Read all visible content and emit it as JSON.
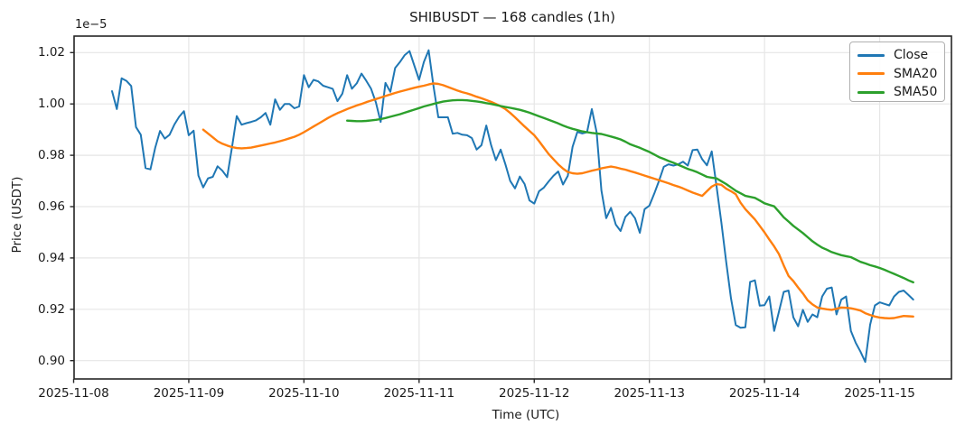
{
  "figure": {
    "title": "SHIBUSDT — 168 candles (1h)",
    "xlabel": "Time (UTC)",
    "ylabel": "Price (USDT)",
    "offset_text": "1e−5",
    "background_color": "#ffffff",
    "grid_color": "#e6e6e6",
    "spine_color": "#262626",
    "text_color": "#1a1a1a"
  },
  "legend": {
    "position": "upper right",
    "entries": [
      {
        "label": "Close",
        "color": "#1f77b4"
      },
      {
        "label": "SMA20",
        "color": "#ff7f0e"
      },
      {
        "label": "SMA50",
        "color": "#2ca02c"
      }
    ]
  },
  "chart_data": {
    "type": "line",
    "title": "SHIBUSDT — 168 candles (1h)",
    "xlabel": "Time (UTC)",
    "ylabel": "Price (USDT)",
    "y_scale_factor": "1e-5",
    "n_points": 168,
    "x_start": "2025-11-08 08:00",
    "x_interval": "1h",
    "x_tick_labels": [
      "2025-11-08",
      "2025-11-09",
      "2025-11-10",
      "2025-11-11",
      "2025-11-12",
      "2025-11-13",
      "2025-11-14",
      "2025-11-15"
    ],
    "y_ticks": [
      0.9,
      0.92,
      0.94,
      0.96,
      0.98,
      1.0,
      1.02
    ],
    "y_tick_labels": [
      "0.90",
      "0.92",
      "0.94",
      "0.96",
      "0.98",
      "1.00",
      "1.02"
    ],
    "ylim": [
      0.8929,
      1.0264
    ],
    "grid": true,
    "legend_position": "upper right",
    "series": [
      {
        "name": "Close",
        "color": "#1f77b4",
        "line_width": 2,
        "start_index": 0,
        "values": [
          1.005,
          0.998,
          1.01,
          1.009,
          1.007,
          0.991,
          0.988,
          0.975,
          0.9745,
          0.983,
          0.9895,
          0.9865,
          0.988,
          0.992,
          0.995,
          0.9972,
          0.9878,
          0.9896,
          0.9721,
          0.9675,
          0.971,
          0.9716,
          0.9757,
          0.974,
          0.9715,
          0.983,
          0.9953,
          0.9919,
          0.9925,
          0.993,
          0.9936,
          0.9948,
          0.9965,
          0.9919,
          1.0018,
          0.9977,
          1.0,
          1.0,
          0.9983,
          0.999,
          1.0112,
          1.0065,
          1.0094,
          1.0088,
          1.0071,
          1.0065,
          1.0059,
          1.0011,
          1.004,
          1.0112,
          1.0059,
          1.008,
          1.0118,
          1.009,
          1.0059,
          1.0006,
          0.993,
          1.0082,
          1.0047,
          1.014,
          1.0163,
          1.019,
          1.0206,
          1.015,
          1.0094,
          1.0163,
          1.0209,
          1.0071,
          0.9948,
          0.9948,
          0.9948,
          0.9884,
          0.9887,
          0.988,
          0.9878,
          0.9867,
          0.9822,
          0.9839,
          0.9916,
          0.984,
          0.9781,
          0.9822,
          0.9764,
          0.97,
          0.9671,
          0.9717,
          0.9688,
          0.9624,
          0.9612,
          0.966,
          0.9674,
          0.9698,
          0.972,
          0.9737,
          0.9686,
          0.972,
          0.9833,
          0.9891,
          0.9885,
          0.989,
          0.998,
          0.989,
          0.9663,
          0.9555,
          0.9595,
          0.953,
          0.9505,
          0.956,
          0.958,
          0.9555,
          0.9498,
          0.959,
          0.9604,
          0.965,
          0.97,
          0.9755,
          0.9765,
          0.976,
          0.9765,
          0.9775,
          0.976,
          0.982,
          0.9822,
          0.9785,
          0.9761,
          0.9815,
          0.968,
          0.954,
          0.9385,
          0.9243,
          0.9139,
          0.9128,
          0.913,
          0.9307,
          0.9313,
          0.9214,
          0.9216,
          0.925,
          0.9116,
          0.9191,
          0.9268,
          0.9273,
          0.9169,
          0.9134,
          0.9198,
          0.9151,
          0.918,
          0.9169,
          0.925,
          0.928,
          0.9285,
          0.918,
          0.9238,
          0.925,
          0.9116,
          0.907,
          0.9035,
          0.8995,
          0.914,
          0.9215,
          0.9227,
          0.9221,
          0.9215,
          0.925,
          0.9268,
          0.9273,
          0.9256,
          0.9238
        ]
      },
      {
        "name": "SMA20",
        "color": "#ff7f0e",
        "line_width": 2.4,
        "start_index": 19,
        "values": [
          0.99,
          0.9885,
          0.987,
          0.9855,
          0.9845,
          0.9838,
          0.9832,
          0.9828,
          0.9827,
          0.9828,
          0.983,
          0.9834,
          0.9838,
          0.9842,
          0.9846,
          0.985,
          0.9855,
          0.986,
          0.9866,
          0.9872,
          0.988,
          0.989,
          0.9901,
          0.9912,
          0.9923,
          0.9934,
          0.9945,
          0.9955,
          0.9964,
          0.9972,
          0.998,
          0.9987,
          0.9994,
          1.0,
          1.0007,
          1.0013,
          1.0019,
          1.0025,
          1.0031,
          1.0037,
          1.0043,
          1.0048,
          1.0053,
          1.0058,
          1.0063,
          1.0067,
          1.0071,
          1.0076,
          1.008,
          1.0078,
          1.0073,
          1.0066,
          1.0059,
          1.0052,
          1.0046,
          1.0041,
          1.0035,
          1.0028,
          1.0022,
          1.0015,
          1.0008,
          1.0,
          0.9991,
          0.998,
          0.9965,
          0.9948,
          0.993,
          0.9912,
          0.9895,
          0.9878,
          0.9855,
          0.983,
          0.9805,
          0.9785,
          0.9765,
          0.9748,
          0.9735,
          0.973,
          0.9728,
          0.973,
          0.9735,
          0.974,
          0.9744,
          0.9749,
          0.9753,
          0.9756,
          0.9753,
          0.9748,
          0.9744,
          0.9738,
          0.9733,
          0.9727,
          0.9721,
          0.9715,
          0.9709,
          0.9703,
          0.9697,
          0.9691,
          0.9684,
          0.9678,
          0.9671,
          0.9663,
          0.9655,
          0.9648,
          0.9642,
          0.966,
          0.9678,
          0.9688,
          0.9685,
          0.967,
          0.966,
          0.9648,
          0.9615,
          0.959,
          0.957,
          0.955,
          0.9525,
          0.95,
          0.9472,
          0.9445,
          0.9415,
          0.9371,
          0.933,
          0.931,
          0.9285,
          0.9262,
          0.9235,
          0.9219,
          0.9207,
          0.9203,
          0.92,
          0.9198,
          0.9202,
          0.9207,
          0.9206,
          0.9204,
          0.92,
          0.9195,
          0.9185,
          0.9178,
          0.9172,
          0.9168,
          0.9166,
          0.9165,
          0.9166,
          0.917,
          0.9174,
          0.9173,
          0.9172
        ]
      },
      {
        "name": "SMA50",
        "color": "#2ca02c",
        "line_width": 2.4,
        "start_index": 49,
        "values": [
          0.9935,
          0.9934,
          0.9933,
          0.9933,
          0.9934,
          0.9936,
          0.9938,
          0.9941,
          0.9945,
          0.995,
          0.9955,
          0.996,
          0.9966,
          0.9972,
          0.9978,
          0.9984,
          0.999,
          0.9995,
          1.0,
          1.0005,
          1.0009,
          1.0012,
          1.0014,
          1.0015,
          1.0015,
          1.0014,
          1.0012,
          1.001,
          1.0007,
          1.0003,
          1.0,
          0.9996,
          0.9992,
          0.9988,
          0.9985,
          0.9981,
          0.9977,
          0.9972,
          0.9966,
          0.9959,
          0.9952,
          0.9945,
          0.9938,
          0.9931,
          0.9924,
          0.9916,
          0.9909,
          0.9903,
          0.9898,
          0.9893,
          0.989,
          0.9887,
          0.9885,
          0.9883,
          0.9878,
          0.9873,
          0.9868,
          0.9862,
          0.9853,
          0.9843,
          0.9836,
          0.9829,
          0.9821,
          0.9813,
          0.9803,
          0.9793,
          0.9786,
          0.9778,
          0.9771,
          0.9763,
          0.9755,
          0.9747,
          0.9741,
          0.9734,
          0.9725,
          0.9716,
          0.9713,
          0.971,
          0.9699,
          0.9688,
          0.9675,
          0.9662,
          0.9652,
          0.9642,
          0.9638,
          0.9634,
          0.9624,
          0.9613,
          0.9607,
          0.9601,
          0.958,
          0.9558,
          0.9542,
          0.9525,
          0.9511,
          0.9497,
          0.9481,
          0.9465,
          0.9452,
          0.944,
          0.9432,
          0.9423,
          0.9417,
          0.9411,
          0.9407,
          0.9403,
          0.9394,
          0.9385,
          0.9379,
          0.9372,
          0.9367,
          0.9361,
          0.9354,
          0.9346,
          0.9338,
          0.933,
          0.9322,
          0.9313,
          0.9305
        ]
      }
    ]
  }
}
